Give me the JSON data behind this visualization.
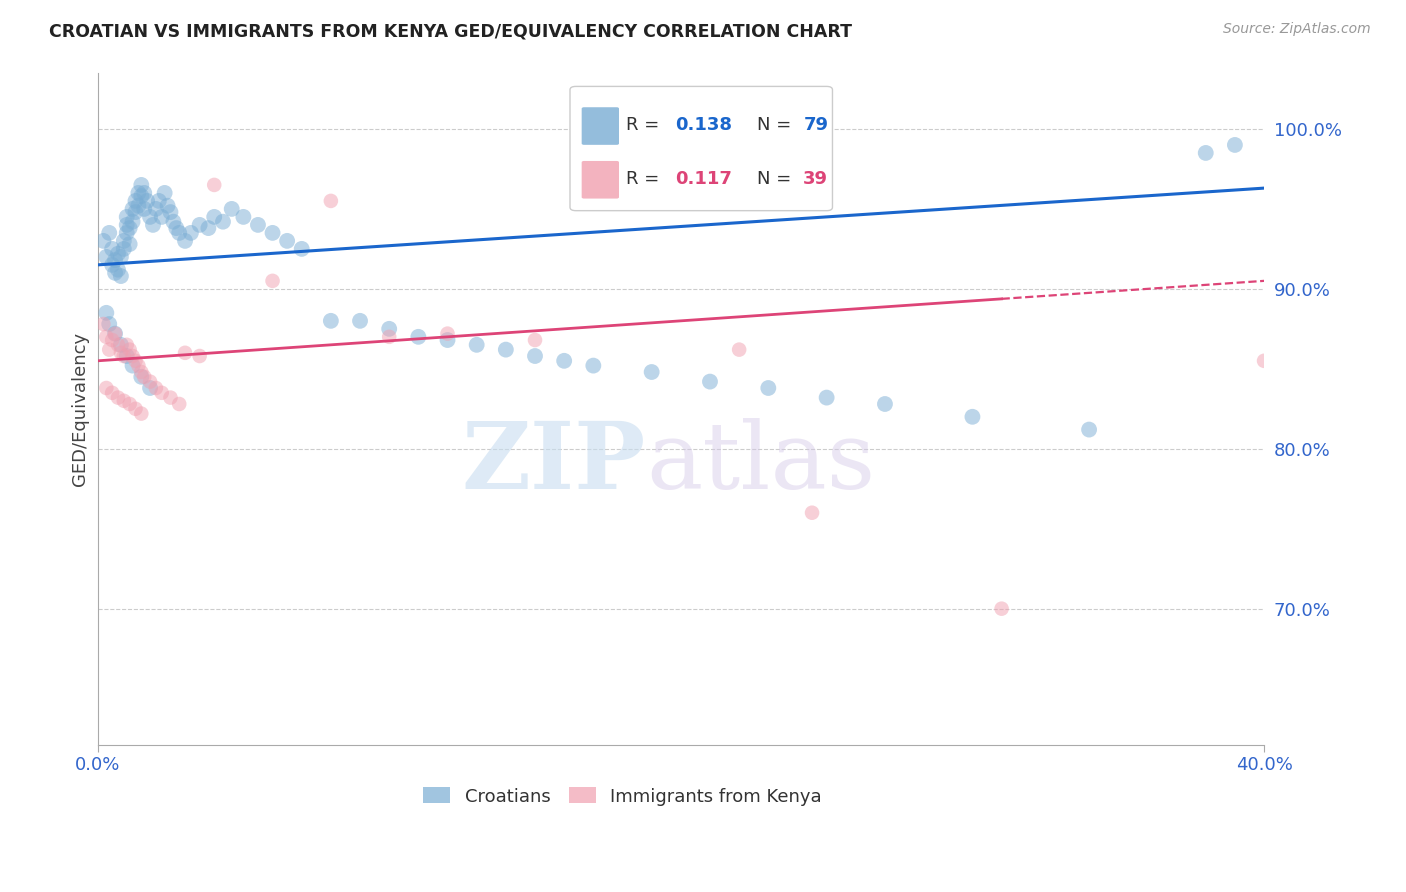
{
  "title": "CROATIAN VS IMMIGRANTS FROM KENYA GED/EQUIVALENCY CORRELATION CHART",
  "source": "Source: ZipAtlas.com",
  "ylabel": "GED/Equivalency",
  "ytick_labels": [
    "100.0%",
    "90.0%",
    "80.0%",
    "70.0%"
  ],
  "ytick_values": [
    1.0,
    0.9,
    0.8,
    0.7
  ],
  "xlim": [
    0.0,
    0.4
  ],
  "ylim": [
    0.615,
    1.035
  ],
  "blue_color": "#7aadd4",
  "pink_color": "#f0a0b0",
  "trend_blue_color": "#1a66cc",
  "trend_pink_color": "#dd4477",
  "watermark_zip": "ZIP",
  "watermark_atlas": "atlas",
  "background_color": "#ffffff",
  "grid_color": "#cccccc",
  "title_color": "#222222",
  "tick_color": "#3366CC",
  "scatter_blue_x": [
    0.002,
    0.003,
    0.004,
    0.005,
    0.005,
    0.006,
    0.006,
    0.007,
    0.007,
    0.008,
    0.008,
    0.009,
    0.009,
    0.01,
    0.01,
    0.01,
    0.011,
    0.011,
    0.012,
    0.012,
    0.013,
    0.013,
    0.014,
    0.014,
    0.015,
    0.015,
    0.016,
    0.016,
    0.017,
    0.018,
    0.019,
    0.02,
    0.021,
    0.022,
    0.023,
    0.024,
    0.025,
    0.026,
    0.027,
    0.028,
    0.03,
    0.032,
    0.035,
    0.038,
    0.04,
    0.043,
    0.046,
    0.05,
    0.055,
    0.06,
    0.065,
    0.07,
    0.08,
    0.09,
    0.1,
    0.11,
    0.12,
    0.13,
    0.14,
    0.15,
    0.16,
    0.17,
    0.19,
    0.21,
    0.23,
    0.25,
    0.27,
    0.3,
    0.34,
    0.38,
    0.003,
    0.004,
    0.006,
    0.008,
    0.01,
    0.012,
    0.015,
    0.018,
    0.39
  ],
  "scatter_blue_y": [
    0.93,
    0.92,
    0.935,
    0.925,
    0.915,
    0.91,
    0.918,
    0.922,
    0.912,
    0.908,
    0.92,
    0.925,
    0.93,
    0.935,
    0.94,
    0.945,
    0.938,
    0.928,
    0.95,
    0.942,
    0.955,
    0.948,
    0.96,
    0.952,
    0.965,
    0.958,
    0.96,
    0.95,
    0.955,
    0.945,
    0.94,
    0.95,
    0.955,
    0.945,
    0.96,
    0.952,
    0.948,
    0.942,
    0.938,
    0.935,
    0.93,
    0.935,
    0.94,
    0.938,
    0.945,
    0.942,
    0.95,
    0.945,
    0.94,
    0.935,
    0.93,
    0.925,
    0.88,
    0.88,
    0.875,
    0.87,
    0.868,
    0.865,
    0.862,
    0.858,
    0.855,
    0.852,
    0.848,
    0.842,
    0.838,
    0.832,
    0.828,
    0.82,
    0.812,
    0.985,
    0.885,
    0.878,
    0.872,
    0.865,
    0.858,
    0.852,
    0.845,
    0.838,
    0.99
  ],
  "scatter_pink_x": [
    0.002,
    0.003,
    0.004,
    0.005,
    0.006,
    0.007,
    0.008,
    0.009,
    0.01,
    0.011,
    0.012,
    0.013,
    0.014,
    0.015,
    0.016,
    0.018,
    0.02,
    0.022,
    0.025,
    0.028,
    0.03,
    0.035,
    0.04,
    0.06,
    0.08,
    0.1,
    0.12,
    0.15,
    0.22,
    0.31,
    0.003,
    0.005,
    0.007,
    0.009,
    0.011,
    0.013,
    0.015,
    0.245,
    0.4
  ],
  "scatter_pink_y": [
    0.878,
    0.87,
    0.862,
    0.868,
    0.872,
    0.865,
    0.86,
    0.858,
    0.865,
    0.862,
    0.858,
    0.855,
    0.852,
    0.848,
    0.845,
    0.842,
    0.838,
    0.835,
    0.832,
    0.828,
    0.86,
    0.858,
    0.965,
    0.905,
    0.955,
    0.87,
    0.872,
    0.868,
    0.862,
    0.7,
    0.838,
    0.835,
    0.832,
    0.83,
    0.828,
    0.825,
    0.822,
    0.76,
    0.855
  ],
  "blue_marker_size": 130,
  "pink_marker_size": 110
}
